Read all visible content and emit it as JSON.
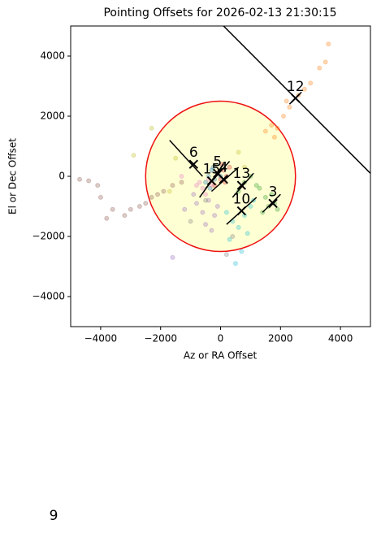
{
  "chart_data": {
    "type": "scatter",
    "title": "Pointing Offsets for 2026-02-13 21:30:15",
    "xlabel": "Az or RA Offset",
    "ylabel": "El or Dec Offset",
    "xlim": [
      -5000,
      5000
    ],
    "ylim": [
      -5000,
      5000
    ],
    "xticks": [
      {
        "value": -4000,
        "label": "−4000"
      },
      {
        "value": -2000,
        "label": "−2000"
      },
      0,
      2000,
      4000
    ],
    "yticks": [
      {
        "value": -4000,
        "label": "−4000"
      },
      {
        "value": -2000,
        "label": "−2000"
      },
      0,
      2000,
      4000
    ],
    "circle_radius": 2500,
    "reference_line": {
      "x": [
        100,
        5000
      ],
      "y": [
        5000,
        100
      ]
    },
    "series": [
      {
        "color": "#1f77b4",
        "x": [
          -400,
          -300,
          -200,
          -100,
          -500,
          -250,
          0,
          -350
        ],
        "y": [
          0,
          200,
          -100,
          100,
          -200,
          300,
          0,
          -400
        ]
      },
      {
        "color": "#ff7f0e",
        "x": [
          1500,
          1700,
          1900,
          2100,
          2300,
          2600,
          2800,
          3000,
          3300,
          3500,
          3600,
          1800,
          2200
        ],
        "y": [
          1500,
          1700,
          1600,
          2000,
          2300,
          2700,
          2900,
          3100,
          3600,
          3800,
          4400,
          1300,
          2500
        ]
      },
      {
        "color": "#2ca02c",
        "x": [
          1300,
          1500,
          1600,
          1700,
          1800,
          1900,
          1400,
          1200,
          1000,
          800,
          600
        ],
        "y": [
          -400,
          -700,
          -1000,
          -600,
          -900,
          -1100,
          -1200,
          -300,
          0,
          -200,
          -500
        ]
      },
      {
        "color": "#d62728",
        "x": [
          -100,
          0,
          100,
          200,
          -200,
          50,
          150,
          300
        ],
        "y": [
          100,
          -100,
          200,
          0,
          -300,
          400,
          -200,
          300
        ]
      },
      {
        "color": "#9467bd",
        "x": [
          -800,
          -600,
          -400,
          -200,
          -900,
          -500,
          -300,
          -100,
          -1600,
          -1200
        ],
        "y": [
          -900,
          -1200,
          -800,
          -1300,
          -600,
          -1600,
          -1800,
          -1000,
          -2700,
          -1100
        ]
      },
      {
        "color": "#8c564b",
        "x": [
          -4700,
          -4400,
          -4000,
          -3600,
          -3200,
          -3000,
          -2700,
          -2500,
          -2300,
          -2100,
          -1900,
          -1600,
          -1300,
          -4100,
          -3800
        ],
        "y": [
          -100,
          -150,
          -700,
          -1100,
          -1300,
          -1100,
          -1000,
          -900,
          -700,
          -600,
          -500,
          -300,
          -200,
          -300,
          -1400
        ]
      },
      {
        "color": "#e377c2",
        "x": [
          -700,
          -600,
          -400,
          -800,
          -500,
          -300,
          -1300
        ],
        "y": [
          -200,
          -400,
          -100,
          -300,
          -600,
          -300,
          0
        ]
      },
      {
        "color": "#7f7f7f",
        "x": [
          -1000,
          -500,
          200,
          400
        ],
        "y": [
          -1500,
          -800,
          -2600,
          -2000
        ]
      },
      {
        "color": "#bcbd22",
        "x": [
          -2900,
          -2300,
          -1500,
          -1700,
          600,
          800
        ],
        "y": [
          700,
          1600,
          600,
          -500,
          800,
          300
        ]
      },
      {
        "color": "#17becf",
        "x": [
          200,
          400,
          600,
          800,
          1000,
          300,
          700,
          500,
          900,
          1100
        ],
        "y": [
          -1200,
          -1500,
          -1700,
          -1300,
          -1000,
          -2100,
          -2500,
          -2900,
          -1900,
          -800
        ]
      }
    ],
    "targets": [
      {
        "label": "6",
        "x": -900,
        "y": 400,
        "line_x": [
          -1700,
          -600
        ],
        "line_y": [
          1200,
          0
        ]
      },
      {
        "label": "15",
        "x": -300,
        "y": -150,
        "line_x": [
          -700,
          100
        ],
        "line_y": [
          -700,
          400
        ]
      },
      {
        "label": "5",
        "x": -100,
        "y": 100,
        "line_x": [
          -500,
          300
        ],
        "line_y": [
          -400,
          500
        ]
      },
      {
        "label": "4",
        "x": 100,
        "y": -100,
        "line_x": [
          -300,
          600
        ],
        "line_y": [
          -500,
          300
        ]
      },
      {
        "label": "13",
        "x": 700,
        "y": -300,
        "line_x": [
          400,
          1100
        ],
        "line_y": [
          -700,
          100
        ]
      },
      {
        "label": "10",
        "x": 700,
        "y": -1150,
        "line_x": [
          200,
          1200
        ],
        "line_y": [
          -1600,
          -700
        ]
      },
      {
        "label": "3",
        "x": 1750,
        "y": -900,
        "line_x": [
          1400,
          2000
        ],
        "line_y": [
          -1200,
          -600
        ]
      },
      {
        "label": "12",
        "x": 2500,
        "y": 2600,
        "line_x": [
          2300,
          2700
        ],
        "line_y": [
          2400,
          2800
        ]
      }
    ],
    "annotation": "9"
  }
}
